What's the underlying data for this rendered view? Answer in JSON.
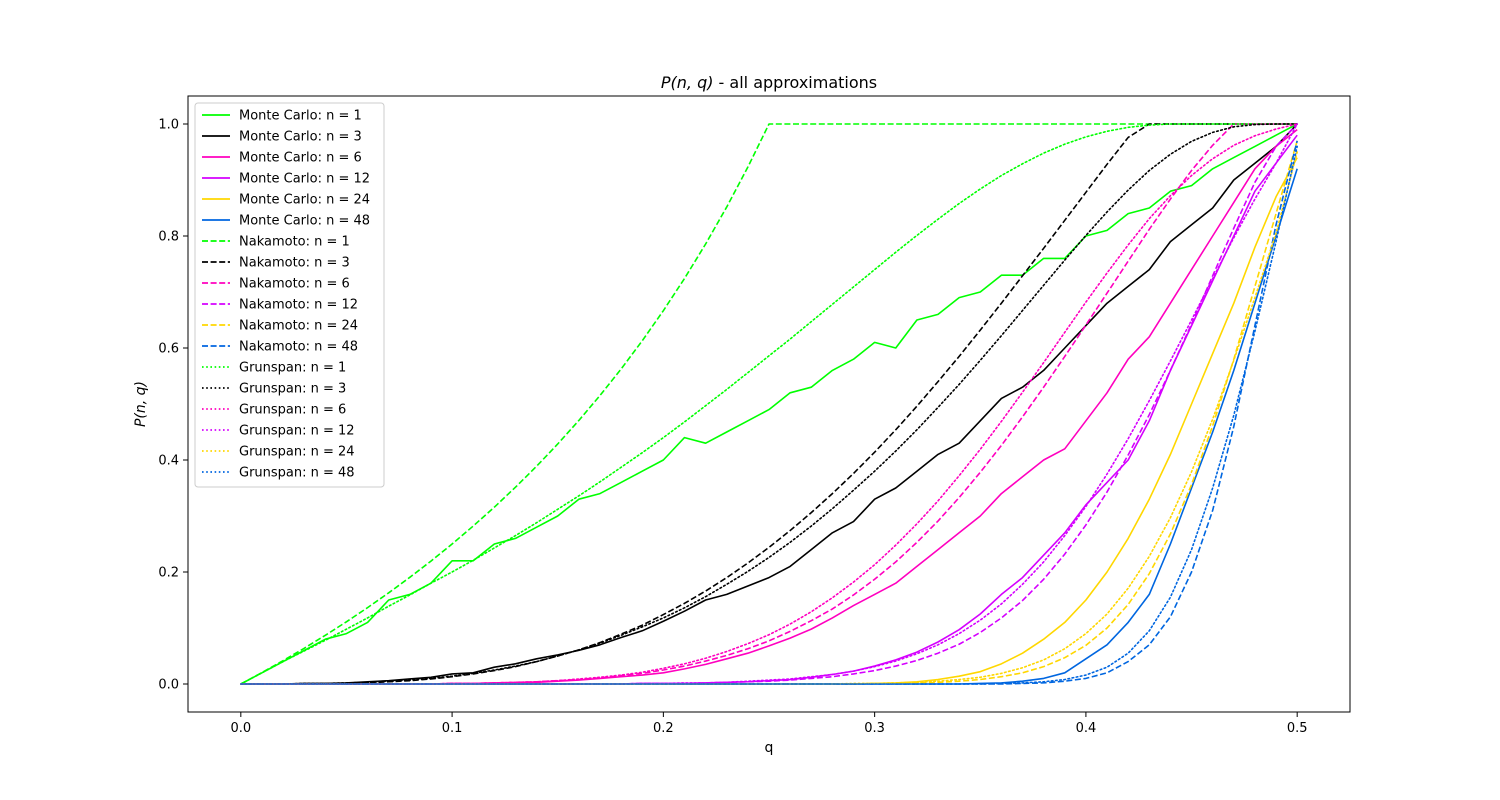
{
  "chart_data": {
    "type": "line",
    "title": "P(n, q) - all approximations",
    "title_italic_part": "P(n, q)",
    "title_rest": " - all approximations",
    "xlabel": "q",
    "ylabel": "P(n, q)",
    "xlim": [
      -0.025,
      0.525
    ],
    "ylim": [
      -0.05,
      1.05
    ],
    "xticks": [
      0.0,
      0.1,
      0.2,
      0.3,
      0.4,
      0.5
    ],
    "xtick_labels": [
      "0.0",
      "0.1",
      "0.2",
      "0.3",
      "0.4",
      "0.5"
    ],
    "yticks": [
      0.0,
      0.2,
      0.4,
      0.6,
      0.8,
      1.0
    ],
    "ytick_labels": [
      "0.0",
      "0.2",
      "0.4",
      "0.6",
      "0.8",
      "1.0"
    ],
    "grid": false,
    "legend_position": "upper-left",
    "n_values": [
      1,
      3,
      6,
      12,
      24,
      48
    ],
    "colors": [
      "#00ff00",
      "#000000",
      "#ff00bf",
      "#d500ff",
      "#ffd700",
      "#0066e0"
    ],
    "methods": [
      {
        "name": "Monte Carlo",
        "style": "solid"
      },
      {
        "name": "Nakamoto",
        "style": "dashed"
      },
      {
        "name": "Grunspan",
        "style": "dotted"
      }
    ],
    "legend_entries": [
      "Monte Carlo: n = 1",
      "Monte Carlo: n = 3",
      "Monte Carlo: n = 6",
      "Monte Carlo: n = 12",
      "Monte Carlo: n = 24",
      "Monte Carlo: n = 48",
      "Nakamoto: n = 1",
      "Nakamoto: n = 3",
      "Nakamoto: n = 6",
      "Nakamoto: n = 12",
      "Nakamoto: n = 24",
      "Nakamoto: n = 48",
      "Grunspan: n = 1",
      "Grunspan: n = 3",
      "Grunspan: n = 6",
      "Grunspan: n = 12",
      "Grunspan: n = 24",
      "Grunspan: n = 48"
    ],
    "x": [
      0.0,
      0.01,
      0.02,
      0.03,
      0.04,
      0.05,
      0.06,
      0.07,
      0.08,
      0.09,
      0.1,
      0.11,
      0.12,
      0.13,
      0.14,
      0.15,
      0.16,
      0.17,
      0.18,
      0.19,
      0.2,
      0.21,
      0.22,
      0.23,
      0.24,
      0.25,
      0.26,
      0.27,
      0.28,
      0.29,
      0.3,
      0.31,
      0.32,
      0.33,
      0.34,
      0.35,
      0.36,
      0.37,
      0.38,
      0.39,
      0.4,
      0.41,
      0.42,
      0.43,
      0.44,
      0.45,
      0.46,
      0.47,
      0.48,
      0.49,
      0.5
    ],
    "series": [
      {
        "name": "Monte Carlo: n = 1",
        "values": [
          0.0,
          0.02,
          0.04,
          0.06,
          0.08,
          0.09,
          0.11,
          0.15,
          0.16,
          0.18,
          0.22,
          0.22,
          0.25,
          0.26,
          0.28,
          0.3,
          0.33,
          0.34,
          0.36,
          0.38,
          0.4,
          0.44,
          0.43,
          0.45,
          0.47,
          0.49,
          0.52,
          0.53,
          0.56,
          0.58,
          0.61,
          0.6,
          0.65,
          0.66,
          0.69,
          0.7,
          0.73,
          0.73,
          0.76,
          0.76,
          0.8,
          0.81,
          0.84,
          0.85,
          0.88,
          0.89,
          0.92,
          0.94,
          0.96,
          0.98,
          1.0
        ]
      },
      {
        "name": "Monte Carlo: n = 3",
        "values": [
          0.0,
          0.0,
          0.0,
          0.001,
          0.001,
          0.002,
          0.004,
          0.006,
          0.009,
          0.012,
          0.018,
          0.02,
          0.03,
          0.036,
          0.045,
          0.052,
          0.06,
          0.07,
          0.083,
          0.095,
          0.112,
          0.13,
          0.15,
          0.16,
          0.175,
          0.19,
          0.21,
          0.24,
          0.27,
          0.29,
          0.33,
          0.35,
          0.38,
          0.41,
          0.43,
          0.47,
          0.51,
          0.53,
          0.56,
          0.6,
          0.64,
          0.68,
          0.71,
          0.74,
          0.79,
          0.82,
          0.85,
          0.9,
          0.93,
          0.96,
          1.0
        ]
      },
      {
        "name": "Monte Carlo: n = 6",
        "values": [
          0.0,
          0.0,
          0.0,
          0.0,
          0.0,
          0.0,
          0.0,
          0.0,
          0.0,
          0.0,
          0.001,
          0.001,
          0.002,
          0.002,
          0.003,
          0.005,
          0.007,
          0.01,
          0.013,
          0.016,
          0.02,
          0.027,
          0.035,
          0.045,
          0.055,
          0.068,
          0.082,
          0.098,
          0.118,
          0.14,
          0.16,
          0.18,
          0.21,
          0.24,
          0.27,
          0.3,
          0.34,
          0.37,
          0.4,
          0.42,
          0.47,
          0.52,
          0.58,
          0.62,
          0.68,
          0.74,
          0.8,
          0.86,
          0.92,
          0.96,
          0.99
        ]
      },
      {
        "name": "Monte Carlo: n = 12",
        "values": [
          0.0,
          0.0,
          0.0,
          0.0,
          0.0,
          0.0,
          0.0,
          0.0,
          0.0,
          0.0,
          0.0,
          0.0,
          0.0,
          0.0,
          0.0,
          0.0,
          0.0,
          0.0,
          0.0,
          0.001,
          0.001,
          0.001,
          0.002,
          0.003,
          0.004,
          0.006,
          0.008,
          0.012,
          0.017,
          0.023,
          0.032,
          0.043,
          0.057,
          0.075,
          0.097,
          0.125,
          0.16,
          0.19,
          0.23,
          0.27,
          0.32,
          0.36,
          0.4,
          0.47,
          0.56,
          0.64,
          0.72,
          0.8,
          0.88,
          0.93,
          0.98
        ]
      },
      {
        "name": "Monte Carlo: n = 24",
        "values": [
          0.0,
          0.0,
          0.0,
          0.0,
          0.0,
          0.0,
          0.0,
          0.0,
          0.0,
          0.0,
          0.0,
          0.0,
          0.0,
          0.0,
          0.0,
          0.0,
          0.0,
          0.0,
          0.0,
          0.0,
          0.0,
          0.0,
          0.0,
          0.0,
          0.0,
          0.0,
          0.0,
          0.0,
          0.0,
          0.0,
          0.001,
          0.002,
          0.004,
          0.008,
          0.014,
          0.022,
          0.036,
          0.055,
          0.08,
          0.11,
          0.15,
          0.2,
          0.26,
          0.33,
          0.41,
          0.5,
          0.59,
          0.68,
          0.78,
          0.87,
          0.94
        ]
      },
      {
        "name": "Monte Carlo: n = 48",
        "values": [
          0.0,
          0.0,
          0.0,
          0.0,
          0.0,
          0.0,
          0.0,
          0.0,
          0.0,
          0.0,
          0.0,
          0.0,
          0.0,
          0.0,
          0.0,
          0.0,
          0.0,
          0.0,
          0.0,
          0.0,
          0.0,
          0.0,
          0.0,
          0.0,
          0.0,
          0.0,
          0.0,
          0.0,
          0.0,
          0.0,
          0.0,
          0.0,
          0.0,
          0.0,
          0.0,
          0.001,
          0.002,
          0.005,
          0.01,
          0.02,
          0.045,
          0.07,
          0.11,
          0.16,
          0.25,
          0.35,
          0.45,
          0.56,
          0.68,
          0.8,
          0.92
        ]
      },
      {
        "name": "Nakamoto: n = 1",
        "values": [
          0.0,
          0.0204,
          0.0417,
          0.0638,
          0.087,
          0.1111,
          0.1364,
          0.1628,
          0.1905,
          0.2195,
          0.25,
          0.2821,
          0.3158,
          0.3514,
          0.3889,
          0.4286,
          0.4706,
          0.5152,
          0.5625,
          0.6129,
          0.6667,
          0.7241,
          0.7857,
          0.8519,
          0.9231,
          1.0,
          1.0,
          1.0,
          1.0,
          1.0,
          1.0,
          1.0,
          1.0,
          1.0,
          1.0,
          1.0,
          1.0,
          1.0,
          1.0,
          1.0,
          1.0,
          1.0,
          1.0,
          1.0,
          1.0,
          1.0,
          1.0,
          1.0,
          1.0,
          1.0,
          1.0
        ]
      },
      {
        "name": "Nakamoto: n = 3",
        "values": [
          0.0,
          0.0,
          0.0,
          0.0,
          0.001,
          0.001,
          0.002,
          0.004,
          0.006,
          0.009,
          0.013,
          0.018,
          0.024,
          0.031,
          0.04,
          0.05,
          0.061,
          0.074,
          0.089,
          0.105,
          0.124,
          0.144,
          0.166,
          0.19,
          0.216,
          0.244,
          0.274,
          0.306,
          0.34,
          0.376,
          0.414,
          0.454,
          0.496,
          0.54,
          0.585,
          0.632,
          0.68,
          0.729,
          0.778,
          0.828,
          0.878,
          0.928,
          0.976,
          1.0,
          1.0,
          1.0,
          1.0,
          1.0,
          1.0,
          1.0,
          1.0
        ]
      },
      {
        "name": "Nakamoto: n = 6",
        "values": [
          0.0,
          0.0,
          0.0,
          0.0,
          0.0,
          0.0,
          0.0,
          0.0,
          0.0,
          0.0,
          0.001,
          0.001,
          0.002,
          0.003,
          0.004,
          0.006,
          0.008,
          0.011,
          0.015,
          0.019,
          0.025,
          0.032,
          0.041,
          0.051,
          0.063,
          0.077,
          0.094,
          0.113,
          0.134,
          0.159,
          0.187,
          0.218,
          0.253,
          0.291,
          0.333,
          0.378,
          0.426,
          0.477,
          0.53,
          0.585,
          0.641,
          0.698,
          0.755,
          0.812,
          0.866,
          0.917,
          0.962,
          1.0,
          1.0,
          1.0,
          1.0
        ]
      },
      {
        "name": "Nakamoto: n = 12",
        "values": [
          0.0,
          0.0,
          0.0,
          0.0,
          0.0,
          0.0,
          0.0,
          0.0,
          0.0,
          0.0,
          0.0,
          0.0,
          0.0,
          0.0,
          0.0,
          0.0,
          0.0,
          0.0,
          0.0,
          0.001,
          0.001,
          0.001,
          0.002,
          0.003,
          0.004,
          0.005,
          0.007,
          0.01,
          0.013,
          0.018,
          0.024,
          0.032,
          0.042,
          0.055,
          0.071,
          0.092,
          0.118,
          0.149,
          0.187,
          0.232,
          0.284,
          0.343,
          0.409,
          0.481,
          0.56,
          0.643,
          0.729,
          0.814,
          0.896,
          0.96,
          1.0
        ]
      },
      {
        "name": "Nakamoto: n = 24",
        "values": [
          0.0,
          0.0,
          0.0,
          0.0,
          0.0,
          0.0,
          0.0,
          0.0,
          0.0,
          0.0,
          0.0,
          0.0,
          0.0,
          0.0,
          0.0,
          0.0,
          0.0,
          0.0,
          0.0,
          0.0,
          0.0,
          0.0,
          0.0,
          0.0,
          0.0,
          0.0,
          0.0,
          0.0,
          0.0,
          0.0,
          0.001,
          0.001,
          0.002,
          0.003,
          0.005,
          0.008,
          0.013,
          0.02,
          0.031,
          0.047,
          0.069,
          0.1,
          0.142,
          0.197,
          0.268,
          0.356,
          0.461,
          0.58,
          0.71,
          0.84,
          0.97
        ]
      },
      {
        "name": "Nakamoto: n = 48",
        "values": [
          0.0,
          0.0,
          0.0,
          0.0,
          0.0,
          0.0,
          0.0,
          0.0,
          0.0,
          0.0,
          0.0,
          0.0,
          0.0,
          0.0,
          0.0,
          0.0,
          0.0,
          0.0,
          0.0,
          0.0,
          0.0,
          0.0,
          0.0,
          0.0,
          0.0,
          0.0,
          0.0,
          0.0,
          0.0,
          0.0,
          0.0,
          0.0,
          0.0,
          0.0,
          0.0,
          0.0,
          0.0,
          0.001,
          0.002,
          0.005,
          0.01,
          0.02,
          0.04,
          0.07,
          0.12,
          0.2,
          0.31,
          0.46,
          0.64,
          0.82,
          0.97
        ]
      },
      {
        "name": "Grunspan: n = 1",
        "values": [
          0.0,
          0.02,
          0.04,
          0.059,
          0.078,
          0.098,
          0.118,
          0.139,
          0.159,
          0.18,
          0.2,
          0.221,
          0.243,
          0.265,
          0.288,
          0.312,
          0.336,
          0.361,
          0.387,
          0.413,
          0.44,
          0.468,
          0.497,
          0.526,
          0.556,
          0.586,
          0.616,
          0.647,
          0.678,
          0.709,
          0.74,
          0.771,
          0.801,
          0.83,
          0.858,
          0.884,
          0.908,
          0.929,
          0.948,
          0.964,
          0.977,
          0.987,
          0.994,
          0.998,
          1.0,
          1.0,
          1.0,
          1.0,
          1.0,
          1.0,
          1.0
        ]
      },
      {
        "name": "Grunspan: n = 3",
        "values": [
          0.0,
          0.0,
          0.0,
          0.001,
          0.001,
          0.002,
          0.003,
          0.005,
          0.007,
          0.01,
          0.014,
          0.019,
          0.025,
          0.032,
          0.04,
          0.05,
          0.061,
          0.073,
          0.087,
          0.102,
          0.118,
          0.136,
          0.156,
          0.178,
          0.201,
          0.226,
          0.253,
          0.282,
          0.313,
          0.346,
          0.38,
          0.416,
          0.454,
          0.494,
          0.535,
          0.578,
          0.622,
          0.667,
          0.712,
          0.757,
          0.801,
          0.843,
          0.882,
          0.917,
          0.946,
          0.969,
          0.985,
          0.995,
          0.999,
          1.0,
          1.0
        ]
      },
      {
        "name": "Grunspan: n = 6",
        "values": [
          0.0,
          0.0,
          0.0,
          0.0,
          0.0,
          0.0,
          0.0,
          0.0,
          0.0,
          0.0,
          0.001,
          0.001,
          0.002,
          0.003,
          0.004,
          0.006,
          0.009,
          0.012,
          0.016,
          0.021,
          0.028,
          0.036,
          0.046,
          0.058,
          0.072,
          0.088,
          0.107,
          0.129,
          0.154,
          0.182,
          0.213,
          0.248,
          0.286,
          0.327,
          0.372,
          0.419,
          0.469,
          0.521,
          0.574,
          0.628,
          0.682,
          0.734,
          0.784,
          0.831,
          0.872,
          0.908,
          0.938,
          0.962,
          0.979,
          0.991,
          1.0
        ]
      },
      {
        "name": "Grunspan: n = 12",
        "values": [
          0.0,
          0.0,
          0.0,
          0.0,
          0.0,
          0.0,
          0.0,
          0.0,
          0.0,
          0.0,
          0.0,
          0.0,
          0.0,
          0.0,
          0.0,
          0.0,
          0.0,
          0.0,
          0.0,
          0.001,
          0.001,
          0.002,
          0.002,
          0.003,
          0.005,
          0.007,
          0.009,
          0.013,
          0.017,
          0.023,
          0.031,
          0.041,
          0.054,
          0.07,
          0.09,
          0.114,
          0.143,
          0.178,
          0.218,
          0.265,
          0.317,
          0.375,
          0.438,
          0.506,
          0.577,
          0.65,
          0.724,
          0.797,
          0.866,
          0.93,
          1.0
        ]
      },
      {
        "name": "Grunspan: n = 24",
        "values": [
          0.0,
          0.0,
          0.0,
          0.0,
          0.0,
          0.0,
          0.0,
          0.0,
          0.0,
          0.0,
          0.0,
          0.0,
          0.0,
          0.0,
          0.0,
          0.0,
          0.0,
          0.0,
          0.0,
          0.0,
          0.0,
          0.0,
          0.0,
          0.0,
          0.0,
          0.0,
          0.0,
          0.0,
          0.0,
          0.001,
          0.001,
          0.002,
          0.003,
          0.005,
          0.008,
          0.012,
          0.019,
          0.029,
          0.043,
          0.063,
          0.09,
          0.125,
          0.171,
          0.228,
          0.297,
          0.379,
          0.473,
          0.578,
          0.69,
          0.805,
          0.95
        ]
      },
      {
        "name": "Grunspan: n = 48",
        "values": [
          0.0,
          0.0,
          0.0,
          0.0,
          0.0,
          0.0,
          0.0,
          0.0,
          0.0,
          0.0,
          0.0,
          0.0,
          0.0,
          0.0,
          0.0,
          0.0,
          0.0,
          0.0,
          0.0,
          0.0,
          0.0,
          0.0,
          0.0,
          0.0,
          0.0,
          0.0,
          0.0,
          0.0,
          0.0,
          0.0,
          0.0,
          0.0,
          0.0,
          0.0,
          0.0,
          0.0,
          0.001,
          0.002,
          0.004,
          0.008,
          0.016,
          0.03,
          0.055,
          0.095,
          0.155,
          0.24,
          0.35,
          0.48,
          0.63,
          0.79,
          0.96
        ]
      }
    ]
  }
}
